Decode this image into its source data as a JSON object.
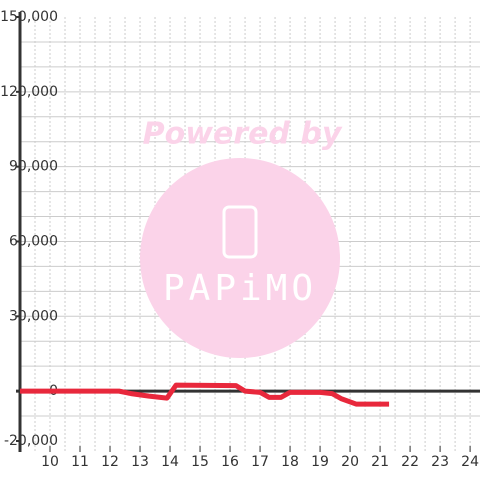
{
  "chart_data": {
    "type": "line",
    "watermark": {
      "text": "Powered by",
      "logo": "PAPiMO"
    },
    "x": [
      9,
      12.3,
      12.7,
      13.3,
      13.9,
      14.2,
      16.2,
      16.5,
      17,
      17.3,
      17.7,
      18,
      19,
      19.4,
      19.7,
      20.2,
      21,
      21.3
    ],
    "series": [
      {
        "color": "#e8283c",
        "values": [
          0,
          0,
          -1000,
          -2000,
          -2800,
          2400,
          2200,
          0,
          -500,
          -2500,
          -2500,
          -500,
          -500,
          -1000,
          -3000,
          -5200,
          -5200,
          -5200
        ]
      }
    ],
    "xlim": [
      9,
      24.33
    ],
    "xticks": [
      10,
      11,
      12,
      13,
      14,
      15,
      16,
      17,
      18,
      19,
      20,
      21,
      22,
      23,
      24
    ],
    "ylim": [
      -20000,
      150000
    ],
    "yticks": [
      {
        "value": -20000,
        "label": "-20,000"
      },
      0,
      {
        "value": 30000,
        "label": "30,000"
      },
      {
        "value": 60000,
        "label": "60,000"
      },
      {
        "value": 90000,
        "label": "90,000"
      },
      {
        "value": 120000,
        "label": "120,000"
      },
      {
        "value": 150000,
        "label": "150,000"
      }
    ],
    "grid": true
  }
}
